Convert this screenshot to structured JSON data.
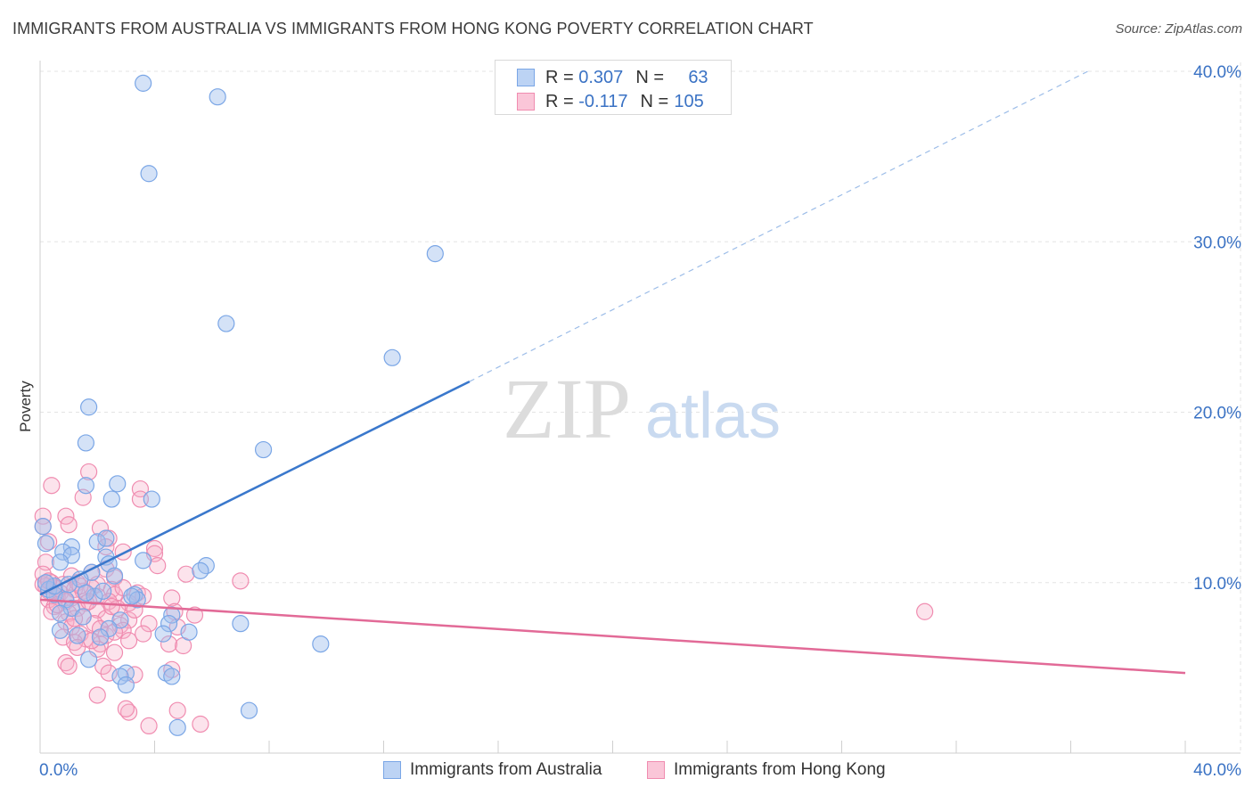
{
  "title": "IMMIGRANTS FROM AUSTRALIA VS IMMIGRANTS FROM HONG KONG POVERTY CORRELATION CHART",
  "source": "Source: ZipAtlas.com",
  "watermark": {
    "zip": "ZIP",
    "atlas": "atlas"
  },
  "legend": {
    "rows": [
      {
        "r_label": "R = ",
        "r_value": "0.307",
        "n_label": "N = ",
        "n_value": "63",
        "color": "#7aa6e6"
      },
      {
        "r_label": "R = ",
        "r_value": "-0.117",
        "n_label": "N = ",
        "n_value": "105",
        "color": "#f08cb0"
      }
    ]
  },
  "bottom_legend": [
    {
      "label": "Immigrants from Australia",
      "color": "#7aa6e6"
    },
    {
      "label": "Immigrants from Hong Kong",
      "color": "#f08cb0"
    }
  ],
  "chart_data": {
    "type": "scatter",
    "title": "IMMIGRANTS FROM AUSTRALIA VS IMMIGRANTS FROM HONG KONG POVERTY CORRELATION CHART",
    "xlabel": "",
    "ylabel": "Poverty",
    "xlim": [
      0,
      40
    ],
    "ylim": [
      0,
      40
    ],
    "x_tick_labels": [
      {
        "value": 0,
        "label": "0.0%"
      },
      {
        "value": 40,
        "label": "40.0%"
      }
    ],
    "y_tick_labels": [
      {
        "value": 10,
        "label": "10.0%"
      },
      {
        "value": 20,
        "label": "20.0%"
      },
      {
        "value": 30,
        "label": "30.0%"
      },
      {
        "value": 40,
        "label": "40.0%"
      }
    ],
    "grid": true,
    "legend_position": "top-center",
    "series": [
      {
        "name": "Immigrants from Australia",
        "color": "#7aa6e6",
        "r": 0.307,
        "n": 63,
        "trend": {
          "x0": 0,
          "y0": 9.3,
          "x1": 15,
          "y1": 21.8,
          "dashed_to_x": 36.6,
          "dashed_to_y": 40.0
        },
        "points": [
          [
            3.6,
            39.3
          ],
          [
            6.2,
            38.5
          ],
          [
            3.8,
            34.0
          ],
          [
            13.8,
            29.3
          ],
          [
            6.5,
            25.2
          ],
          [
            12.3,
            23.2
          ],
          [
            1.7,
            20.3
          ],
          [
            1.6,
            18.2
          ],
          [
            7.8,
            17.8
          ],
          [
            1.6,
            15.7
          ],
          [
            2.7,
            15.8
          ],
          [
            2.5,
            14.9
          ],
          [
            3.9,
            14.9
          ],
          [
            0.1,
            13.3
          ],
          [
            0.2,
            12.3
          ],
          [
            2.0,
            12.4
          ],
          [
            2.3,
            12.6
          ],
          [
            1.1,
            12.1
          ],
          [
            0.8,
            11.8
          ],
          [
            1.1,
            11.6
          ],
          [
            2.3,
            11.5
          ],
          [
            2.4,
            11.1
          ],
          [
            0.7,
            11.2
          ],
          [
            3.6,
            11.3
          ],
          [
            5.8,
            11.0
          ],
          [
            5.6,
            10.7
          ],
          [
            1.8,
            10.6
          ],
          [
            2.6,
            10.4
          ],
          [
            1.4,
            10.2
          ],
          [
            0.3,
            9.6
          ],
          [
            0.5,
            9.3
          ],
          [
            0.9,
            9.0
          ],
          [
            1.9,
            9.2
          ],
          [
            3.3,
            9.3
          ],
          [
            3.4,
            9.0
          ],
          [
            1.1,
            8.5
          ],
          [
            0.7,
            8.2
          ],
          [
            1.5,
            8.0
          ],
          [
            2.8,
            7.8
          ],
          [
            4.6,
            8.1
          ],
          [
            4.5,
            7.6
          ],
          [
            7.0,
            7.6
          ],
          [
            0.7,
            7.2
          ],
          [
            2.4,
            7.3
          ],
          [
            4.3,
            7.0
          ],
          [
            5.2,
            7.1
          ],
          [
            1.3,
            6.9
          ],
          [
            2.1,
            6.8
          ],
          [
            9.8,
            6.4
          ],
          [
            1.7,
            5.5
          ],
          [
            3.0,
            4.7
          ],
          [
            2.8,
            4.5
          ],
          [
            4.4,
            4.7
          ],
          [
            4.6,
            4.5
          ],
          [
            3.0,
            4.0
          ],
          [
            7.3,
            2.5
          ],
          [
            4.8,
            1.5
          ],
          [
            0.5,
            9.8
          ],
          [
            1.0,
            9.9
          ],
          [
            2.2,
            9.5
          ],
          [
            0.2,
            10.0
          ],
          [
            1.6,
            9.4
          ],
          [
            3.2,
            9.2
          ]
        ]
      },
      {
        "name": "Immigrants from Hong Kong",
        "color": "#f08cb0",
        "r": -0.117,
        "n": 105,
        "trend": {
          "x0": 0,
          "y0": 9.0,
          "x1": 40,
          "y1": 4.7
        },
        "points": [
          [
            1.7,
            16.5
          ],
          [
            0.4,
            15.7
          ],
          [
            3.5,
            15.5
          ],
          [
            1.5,
            15.0
          ],
          [
            3.5,
            14.9
          ],
          [
            0.1,
            13.9
          ],
          [
            0.9,
            13.9
          ],
          [
            0.1,
            13.3
          ],
          [
            1.0,
            13.4
          ],
          [
            2.1,
            13.2
          ],
          [
            2.4,
            12.6
          ],
          [
            0.3,
            12.4
          ],
          [
            2.3,
            12.1
          ],
          [
            4.0,
            12.0
          ],
          [
            4.0,
            11.7
          ],
          [
            2.9,
            11.8
          ],
          [
            0.2,
            11.2
          ],
          [
            4.1,
            11.0
          ],
          [
            2.3,
            10.8
          ],
          [
            1.8,
            10.6
          ],
          [
            5.1,
            10.5
          ],
          [
            1.1,
            10.4
          ],
          [
            0.1,
            10.5
          ],
          [
            2.6,
            10.3
          ],
          [
            7.0,
            10.1
          ],
          [
            0.4,
            10.0
          ],
          [
            0.8,
            9.9
          ],
          [
            1.3,
            10.0
          ],
          [
            2.0,
            9.9
          ],
          [
            0.2,
            9.8
          ],
          [
            0.5,
            9.7
          ],
          [
            1.2,
            9.6
          ],
          [
            1.8,
            9.7
          ],
          [
            2.5,
            9.6
          ],
          [
            0.3,
            9.5
          ],
          [
            0.7,
            9.4
          ],
          [
            1.5,
            9.5
          ],
          [
            2.6,
            9.3
          ],
          [
            3.4,
            9.4
          ],
          [
            0.6,
            9.2
          ],
          [
            1.1,
            9.1
          ],
          [
            2.0,
            9.2
          ],
          [
            4.6,
            9.1
          ],
          [
            0.3,
            9.0
          ],
          [
            0.9,
            8.9
          ],
          [
            1.6,
            8.8
          ],
          [
            2.4,
            8.9
          ],
          [
            3.1,
            8.8
          ],
          [
            0.5,
            8.6
          ],
          [
            1.3,
            8.5
          ],
          [
            2.0,
            8.4
          ],
          [
            2.7,
            8.5
          ],
          [
            0.4,
            8.3
          ],
          [
            1.0,
            8.2
          ],
          [
            4.7,
            8.3
          ],
          [
            5.4,
            8.1
          ],
          [
            1.5,
            8.0
          ],
          [
            2.3,
            7.9
          ],
          [
            3.1,
            7.8
          ],
          [
            0.9,
            7.7
          ],
          [
            1.9,
            7.6
          ],
          [
            2.8,
            7.5
          ],
          [
            3.8,
            7.6
          ],
          [
            1.1,
            7.4
          ],
          [
            2.1,
            7.3
          ],
          [
            2.9,
            7.2
          ],
          [
            4.8,
            7.4
          ],
          [
            1.4,
            7.0
          ],
          [
            2.3,
            6.9
          ],
          [
            0.8,
            6.8
          ],
          [
            1.6,
            6.7
          ],
          [
            3.1,
            6.6
          ],
          [
            1.2,
            6.5
          ],
          [
            2.1,
            6.4
          ],
          [
            4.5,
            6.4
          ],
          [
            5.0,
            6.3
          ],
          [
            1.3,
            6.2
          ],
          [
            2.0,
            6.1
          ],
          [
            2.6,
            5.9
          ],
          [
            0.9,
            5.3
          ],
          [
            1.0,
            5.1
          ],
          [
            2.2,
            5.1
          ],
          [
            4.6,
            4.9
          ],
          [
            2.4,
            4.7
          ],
          [
            3.3,
            4.6
          ],
          [
            2.0,
            3.4
          ],
          [
            3.1,
            2.4
          ],
          [
            3.0,
            2.6
          ],
          [
            4.8,
            2.5
          ],
          [
            3.8,
            1.6
          ],
          [
            5.6,
            1.7
          ],
          [
            30.9,
            8.3
          ],
          [
            0.1,
            9.9
          ],
          [
            0.3,
            10.1
          ],
          [
            1.4,
            9.8
          ],
          [
            2.9,
            9.7
          ],
          [
            3.6,
            9.2
          ],
          [
            0.6,
            8.7
          ],
          [
            1.7,
            8.9
          ],
          [
            2.5,
            8.6
          ],
          [
            3.3,
            8.4
          ],
          [
            1.2,
            7.9
          ],
          [
            2.6,
            7.1
          ],
          [
            3.6,
            7.0
          ],
          [
            1.8,
            6.6
          ]
        ]
      }
    ]
  }
}
